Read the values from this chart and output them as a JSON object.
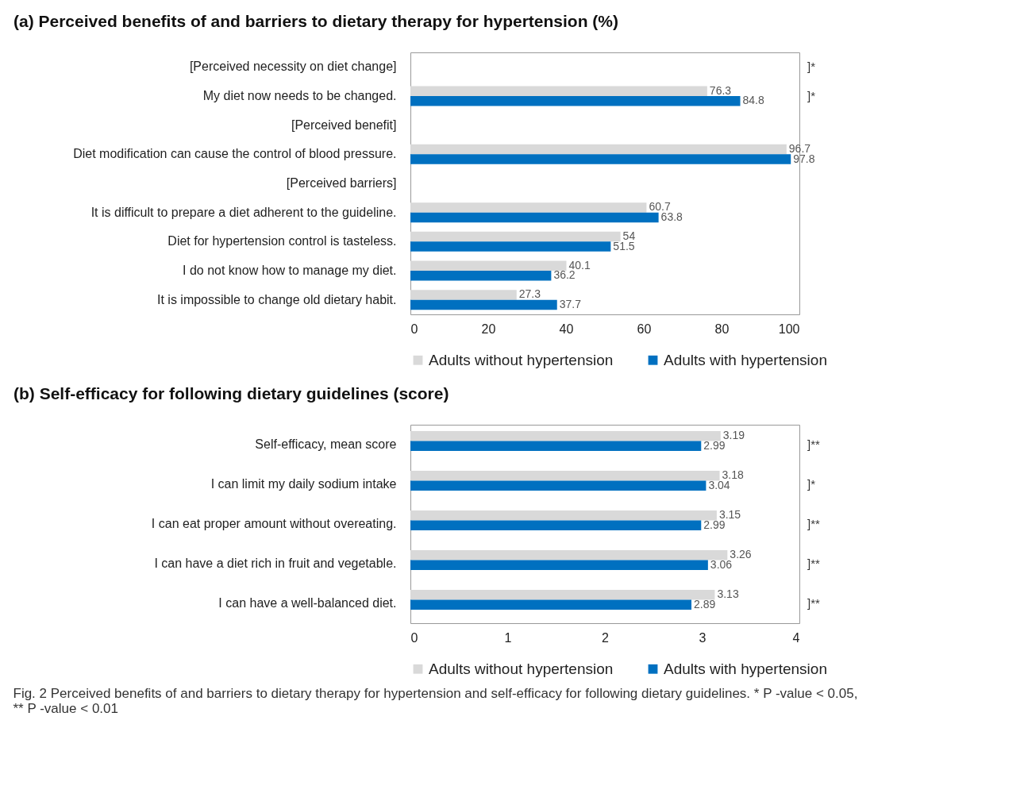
{
  "chart_data": [
    {
      "type": "bar",
      "orientation": "horizontal",
      "title": "(a)  Perceived benefits of and barriers to dietary therapy for hypertension (%)",
      "categories": [
        "[Perceived necessity on diet change]",
        "My diet now needs to be changed.",
        "[Perceived benefit]",
        "Diet modification can cause the control of blood pressure.",
        "[Perceived barriers]",
        "It is difficult to prepare a diet adherent to the guideline.",
        "Diet for hypertension control is tasteless.",
        "I do not know how to manage my diet.",
        "It is impossible to change old dietary habit."
      ],
      "series": [
        {
          "name": "Adults without hypertension",
          "color": "#d9d9d9",
          "values": [
            null,
            76.3,
            null,
            96.7,
            null,
            60.7,
            54,
            40.1,
            27.3
          ]
        },
        {
          "name": "Adults with hypertension",
          "color": "#0070c0",
          "values": [
            null,
            84.8,
            null,
            97.8,
            null,
            63.8,
            51.5,
            36.2,
            37.7
          ]
        }
      ],
      "xlim": [
        0,
        100
      ],
      "xticks": [
        0,
        20,
        40,
        60,
        80,
        100
      ],
      "data_labels": true,
      "legend": "bottom",
      "grid": false,
      "annotations": [
        "]*",
        "]*"
      ]
    },
    {
      "type": "bar",
      "orientation": "horizontal",
      "title": "(b)  Self-efficacy for following dietary guidelines (score)",
      "categories": [
        "Self-efficacy, mean score",
        "I can limit my daily sodium intake",
        "I can eat proper amount without overeating.",
        "I can have a diet rich in fruit and vegetable.",
        "I can have a well-balanced diet."
      ],
      "series": [
        {
          "name": "Adults without hypertension",
          "color": "#d9d9d9",
          "values": [
            3.19,
            3.18,
            3.15,
            3.26,
            3.13
          ]
        },
        {
          "name": "Adults with hypertension",
          "color": "#0070c0",
          "values": [
            2.99,
            3.04,
            2.99,
            3.06,
            2.89
          ]
        }
      ],
      "xlim": [
        0,
        4
      ],
      "xticks": [
        0,
        1,
        2,
        3,
        4
      ],
      "data_labels": true,
      "legend": "bottom",
      "grid": false,
      "annotations": [
        "]**",
        "]*",
        "]**",
        "]**",
        "]**",
        "Fig. 2 Perceived benefits of and barriers to dietary therapy for hypertension and self-efficacy for following dietary guidelines. * P -value < 0.05, ** P -value < 0.01"
      ]
    }
  ]
}
